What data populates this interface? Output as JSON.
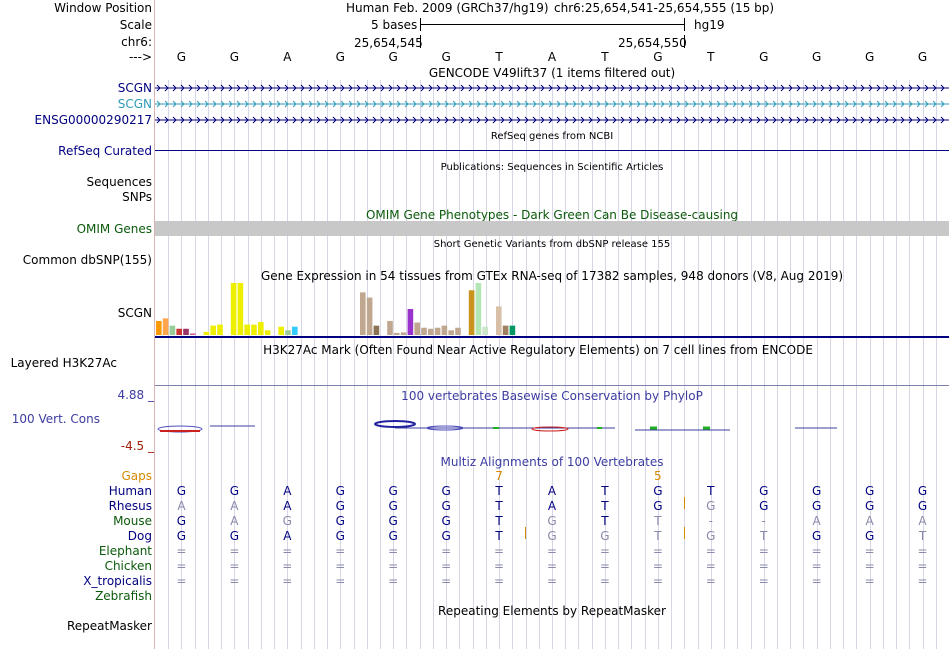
{
  "colors": {
    "track_navy": "#000080",
    "track_teal": "#2f9ab8",
    "omim_green": "#0b5a0b",
    "phylop_blue": "#3c3ca0",
    "phylop_low": "#a0200a",
    "gaps_orange": "#d68a00",
    "omim_gray": "#c8c8c8",
    "gridline": "#d6d6e6"
  },
  "header": {
    "window_position_label": "Window Position",
    "scale_label": "Scale",
    "chrom_label": "chr6:",
    "strand_label": "--->",
    "assembly_title": "Human Feb. 2009 (GRCh37/hg19)",
    "position_range": "chr6:25,654,541-25,654,555 (15 bp)",
    "scale_text": "5 bases",
    "scale_assembly": "hg19",
    "coord_left": "25,654,545",
    "coord_right": "25,654,550"
  },
  "sequence": [
    "G",
    "G",
    "A",
    "G",
    "G",
    "G",
    "T",
    "A",
    "T",
    "G",
    "T",
    "G",
    "G",
    "G",
    "G"
  ],
  "tracks": {
    "gencode": {
      "title": "GENCODE V49lift37 (1 items filtered out)",
      "items": [
        {
          "label": "SCGN",
          "color": "#000080"
        },
        {
          "label": "SCGN",
          "color": "#2f9ab8"
        },
        {
          "label": "ENSG00000290217",
          "color": "#000080"
        }
      ]
    },
    "refseq": {
      "title": "RefSeq genes from NCBI",
      "label": "RefSeq Curated"
    },
    "publications": {
      "title": "Publications: Sequences in Scientific Articles",
      "labels": [
        "Sequences",
        "SNPs"
      ]
    },
    "omim": {
      "title": "OMIM Gene Phenotypes - Dark Green Can Be Disease-causing",
      "label": "OMIM Genes"
    },
    "dbsnp": {
      "title": "Short Genetic Variants from dbSNP release 155",
      "label": "Common dbSNP(155)"
    },
    "gtex": {
      "title": "Gene Expression in 54 tissues from GTEx RNA-seq of 17382 samples, 948 donors (V8, Aug 2019)",
      "label": "SCGN",
      "bars": [
        {
          "v": 0.27,
          "c": "#ff9900"
        },
        {
          "v": 0.32,
          "c": "#ffa64d"
        },
        {
          "v": 0.18,
          "c": "#99cc99"
        },
        {
          "v": 0.12,
          "c": "#cc3333"
        },
        {
          "v": 0.12,
          "c": "#993366"
        },
        {
          "v": 0.03,
          "c": "#cc6699"
        },
        {
          "v": 0.0,
          "c": "#cccccc"
        },
        {
          "v": 0.06,
          "c": "#eeee00"
        },
        {
          "v": 0.18,
          "c": "#eeee00"
        },
        {
          "v": 0.2,
          "c": "#eeee00"
        },
        {
          "v": 0.0,
          "c": "#eeee00"
        },
        {
          "v": 1.0,
          "c": "#eeee00"
        },
        {
          "v": 1.0,
          "c": "#eeee00"
        },
        {
          "v": 0.2,
          "c": "#eeee00"
        },
        {
          "v": 0.2,
          "c": "#eeee00"
        },
        {
          "v": 0.25,
          "c": "#eeee00"
        },
        {
          "v": 0.09,
          "c": "#eeee00"
        },
        {
          "v": 0.0,
          "c": "#cccccc"
        },
        {
          "v": 0.16,
          "c": "#eeee00"
        },
        {
          "v": 0.09,
          "c": "#99cc99"
        },
        {
          "v": 0.16,
          "c": "#33ccff"
        },
        {
          "v": 0.0,
          "c": "#cccccc"
        },
        {
          "v": 0.0,
          "c": "#cccccc"
        },
        {
          "v": 0.0,
          "c": "#cccccc"
        },
        {
          "v": 0.0,
          "c": "#cccccc"
        },
        {
          "v": 0.0,
          "c": "#cccccc"
        },
        {
          "v": 0.0,
          "c": "#cccccc"
        },
        {
          "v": 0.0,
          "c": "#cccccc"
        },
        {
          "v": 0.0,
          "c": "#cccccc"
        },
        {
          "v": 0.0,
          "c": "#cccccc"
        },
        {
          "v": 0.82,
          "c": "#c0a890"
        },
        {
          "v": 0.72,
          "c": "#c0a890"
        },
        {
          "v": 0.18,
          "c": "#8b7355"
        },
        {
          "v": 0.0,
          "c": "#cccccc"
        },
        {
          "v": 0.27,
          "c": "#c0a890"
        },
        {
          "v": 0.04,
          "c": "#c0a890"
        },
        {
          "v": 0.05,
          "c": "#c0a890"
        },
        {
          "v": 0.5,
          "c": "#9933cc"
        },
        {
          "v": 0.24,
          "c": "#c0a890"
        },
        {
          "v": 0.14,
          "c": "#c0a890"
        },
        {
          "v": 0.12,
          "c": "#c0a890"
        },
        {
          "v": 0.14,
          "c": "#c0a890"
        },
        {
          "v": 0.18,
          "c": "#c0a890"
        },
        {
          "v": 0.09,
          "c": "#c0a890"
        },
        {
          "v": 0.14,
          "c": "#c0a890"
        },
        {
          "v": 0.0,
          "c": "#cccccc"
        },
        {
          "v": 0.86,
          "c": "#c8941e"
        },
        {
          "v": 1.0,
          "c": "#b3e6b3"
        },
        {
          "v": 0.16,
          "c": "#cce6cc"
        },
        {
          "v": 0.0,
          "c": "#cccccc"
        },
        {
          "v": 0.55,
          "c": "#d8c0a8"
        },
        {
          "v": 0.18,
          "c": "#a08060"
        },
        {
          "v": 0.18,
          "c": "#009966"
        },
        {
          "v": 0.0,
          "c": "#cccccc"
        }
      ]
    },
    "h3k27ac": {
      "title": "H3K27Ac Mark (Often Found Near Active Regulatory Elements) on 7 cell lines from ENCODE",
      "label": "Layered H3K27Ac"
    },
    "phylop": {
      "title": "100 vertebrates Basewise Conservation by PhyloP",
      "label": "100 Vert. Cons",
      "max": "4.88 _",
      "min": "-4.5 _"
    },
    "multiz": {
      "title": "Multiz Alignments of 100 Vertebrates",
      "gaps_label": "Gaps",
      "gap_counts": [
        {
          "pos": 6.5,
          "text": "7"
        },
        {
          "pos": 9.5,
          "text": "5"
        }
      ],
      "species": [
        {
          "name": "Human",
          "color": "#000080",
          "bases": [
            "G",
            "G",
            "A",
            "G",
            "G",
            "G",
            "T",
            "A",
            "T",
            "G",
            "T",
            "G",
            "G",
            "G",
            "G"
          ]
        },
        {
          "name": "Rhesus",
          "color": "#000080",
          "bases": [
            "A",
            "A",
            "A",
            "G",
            "G",
            "G",
            "T",
            "A",
            "T",
            "G",
            "G",
            "G",
            "G",
            "G",
            "G"
          ]
        },
        {
          "name": "Mouse",
          "color": "#0b5a0b",
          "bases": [
            "G",
            "A",
            "G",
            "G",
            "G",
            "G",
            "T",
            "G",
            "T",
            "T",
            "-",
            "-",
            "A",
            "A",
            "A"
          ]
        },
        {
          "name": "Dog",
          "color": "#000080",
          "bases": [
            "G",
            "G",
            "A",
            "G",
            "G",
            "G",
            "T",
            "G",
            "G",
            "T",
            "G",
            "T",
            "G",
            "G",
            "T"
          ]
        },
        {
          "name": "Elephant",
          "color": "#0b5a0b",
          "bases": [
            "=",
            "=",
            "=",
            "=",
            "=",
            "=",
            "=",
            "=",
            "=",
            "=",
            "=",
            "=",
            "=",
            "=",
            "="
          ]
        },
        {
          "name": "Chicken",
          "color": "#0b5a0b",
          "bases": [
            "=",
            "=",
            "=",
            "=",
            "=",
            "=",
            "=",
            "=",
            "=",
            "=",
            "=",
            "=",
            "=",
            "=",
            "="
          ]
        },
        {
          "name": "X_tropicalis",
          "color": "#000080",
          "bases": [
            "=",
            "=",
            "=",
            "=",
            "=",
            "=",
            "=",
            "=",
            "=",
            "=",
            "=",
            "=",
            "=",
            "=",
            "="
          ]
        },
        {
          "name": "Zebrafish",
          "color": "#0b5a0b",
          "bases": [
            "",
            "",
            "",
            "",
            "",
            "",
            "",
            "",
            "",
            "",
            "",
            "",
            "",
            "",
            ""
          ]
        }
      ]
    },
    "repeatmasker": {
      "title": "Repeating Elements by RepeatMasker",
      "label": "RepeatMasker"
    }
  }
}
